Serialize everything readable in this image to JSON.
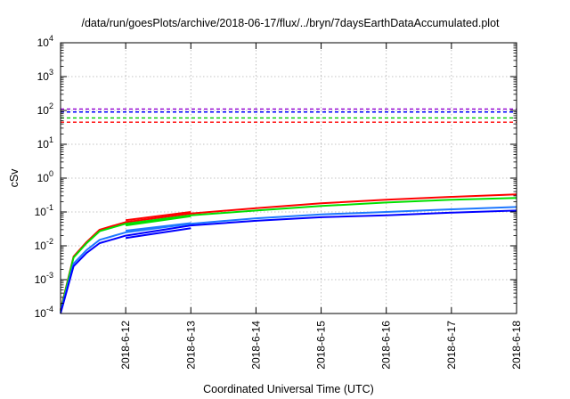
{
  "chart_data": {
    "type": "line",
    "title": "/data/run/goesPlots/archive/2018-06-17/flux/../bryn/7daysEarthDataAccumulated.plot",
    "xlabel": "Coordinated Universal Time (UTC)",
    "ylabel": "cSv",
    "y_scale": "log",
    "ylim": [
      0.0001,
      10000
    ],
    "xlim": [
      "2018-06-11",
      "2018-06-18"
    ],
    "grid": true,
    "legend": "none",
    "x_ticks": [
      "2018-6-12",
      "2018-6-13",
      "2018-6-14",
      "2018-6-15",
      "2018-6-16",
      "2018-6-17",
      "2018-6-18"
    ],
    "y_ticks": [
      {
        "value": 0.0001,
        "base": "10",
        "exp": "-4"
      },
      {
        "value": 0.001,
        "base": "10",
        "exp": "-3"
      },
      {
        "value": 0.01,
        "base": "10",
        "exp": "-2"
      },
      {
        "value": 0.1,
        "base": "10",
        "exp": "-1"
      },
      {
        "value": 1,
        "base": "10",
        "exp": "0"
      },
      {
        "value": 10,
        "base": "10",
        "exp": "1"
      },
      {
        "value": 100,
        "base": "10",
        "exp": "2"
      },
      {
        "value": 1000,
        "base": "10",
        "exp": "3"
      },
      {
        "value": 10000,
        "base": "10",
        "exp": "4"
      }
    ],
    "thresholds": [
      {
        "value": 110,
        "color": "#9400d3",
        "style": "dashed"
      },
      {
        "value": 90,
        "color": "#0000ff",
        "style": "dashed"
      },
      {
        "value": 60,
        "color": "#00cc00",
        "style": "dashed"
      },
      {
        "value": 45,
        "color": "#ff0000",
        "style": "dashed"
      }
    ],
    "series": [
      {
        "color": "#ff0000",
        "x": [
          "2018-06-11 00:00",
          "2018-06-11 04:48",
          "2018-06-11 09:36",
          "2018-06-11 14:24",
          "2018-06-12 00:00",
          "2018-06-13 00:00",
          "2018-06-14 00:00",
          "2018-06-15 00:00",
          "2018-06-16 00:00",
          "2018-06-17 00:00",
          "2018-06-18 00:00"
        ],
        "y": [
          0.00013,
          0.0048,
          0.013,
          0.03,
          0.05,
          0.09,
          0.13,
          0.18,
          0.23,
          0.28,
          0.33
        ]
      },
      {
        "color": "#00e000",
        "x": [
          "2018-06-11 00:00",
          "2018-06-11 04:48",
          "2018-06-11 09:36",
          "2018-06-11 14:24",
          "2018-06-12 00:00",
          "2018-06-13 00:00",
          "2018-06-14 00:00",
          "2018-06-15 00:00",
          "2018-06-16 00:00",
          "2018-06-17 00:00",
          "2018-06-18 00:00"
        ],
        "y": [
          0.00012,
          0.0045,
          0.012,
          0.027,
          0.045,
          0.08,
          0.11,
          0.15,
          0.19,
          0.23,
          0.26
        ]
      },
      {
        "color": "#1e78ff",
        "x": [
          "2018-06-11 00:00",
          "2018-06-11 04:48",
          "2018-06-11 09:36",
          "2018-06-11 14:24",
          "2018-06-12 00:00",
          "2018-06-13 00:00",
          "2018-06-14 00:00",
          "2018-06-15 00:00",
          "2018-06-16 00:00",
          "2018-06-17 00:00",
          "2018-06-18 00:00"
        ],
        "y": [
          0.00011,
          0.003,
          0.0075,
          0.015,
          0.025,
          0.045,
          0.065,
          0.085,
          0.1,
          0.12,
          0.14
        ]
      },
      {
        "color": "#0000ff",
        "x": [
          "2018-06-11 00:00",
          "2018-06-11 04:48",
          "2018-06-11 09:36",
          "2018-06-11 14:24",
          "2018-06-12 00:00",
          "2018-06-13 00:00",
          "2018-06-14 00:00",
          "2018-06-15 00:00",
          "2018-06-16 00:00",
          "2018-06-17 00:00",
          "2018-06-18 00:00"
        ],
        "y": [
          0.0001,
          0.0025,
          0.0062,
          0.012,
          0.02,
          0.04,
          0.055,
          0.07,
          0.08,
          0.095,
          0.11
        ]
      },
      {
        "color": "#0000ff",
        "x": [
          "2018-06-12 00:00",
          "2018-06-13 00:00"
        ],
        "y": [
          0.017,
          0.033
        ]
      },
      {
        "color": "#1e78ff",
        "x": [
          "2018-06-12 00:00",
          "2018-06-13 00:00"
        ],
        "y": [
          0.028,
          0.047
        ]
      },
      {
        "color": "#00e000",
        "x": [
          "2018-06-12 00:00",
          "2018-06-13 00:00"
        ],
        "y": [
          0.04,
          0.075
        ]
      },
      {
        "color": "#ff0000",
        "x": [
          "2018-06-12 00:00",
          "2018-06-13 00:00"
        ],
        "y": [
          0.057,
          0.1
        ]
      }
    ]
  }
}
